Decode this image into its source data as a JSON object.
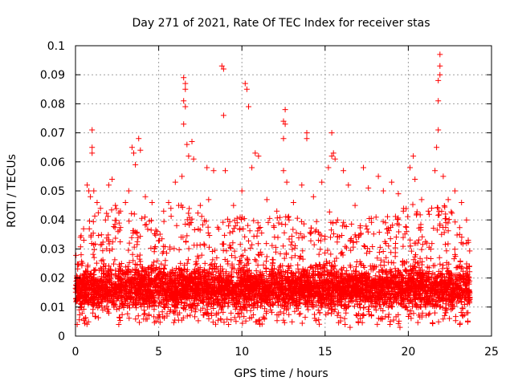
{
  "chart_data": {
    "type": "scatter",
    "title": "Day 271 of 2021, Rate Of TEC Index for receiver stas",
    "xlabel": "GPS time / hours",
    "ylabel": "ROTI / TECUs",
    "xlim": [
      0,
      25
    ],
    "ylim": [
      0,
      0.1
    ],
    "xticks": [
      0,
      5,
      10,
      15,
      20,
      25
    ],
    "xtick_labels": [
      "0",
      "5",
      "10",
      "15",
      "20",
      "25"
    ],
    "yticks": [
      0,
      0.01,
      0.02,
      0.03,
      0.04,
      0.05,
      0.06,
      0.07,
      0.08,
      0.09,
      0.1
    ],
    "ytick_labels": [
      "0",
      "0.01",
      "0.02",
      "0.03",
      "0.04",
      "0.05",
      "0.06",
      "0.07",
      "0.08",
      "0.09",
      "0.1"
    ],
    "grid": true,
    "marker": "+",
    "color": "#ff0000",
    "x_range_of_data": [
      0,
      23.7
    ],
    "series": [
      {
        "name": "stas",
        "points": [
          [
            0.3,
            0.034
          ],
          [
            0.5,
            0.033
          ],
          [
            0.7,
            0.052
          ],
          [
            0.8,
            0.05
          ],
          [
            0.9,
            0.048
          ],
          [
            1.0,
            0.071
          ],
          [
            1.0,
            0.065
          ],
          [
            1.0,
            0.063
          ],
          [
            1.1,
            0.05
          ],
          [
            1.3,
            0.046
          ],
          [
            1.5,
            0.044
          ],
          [
            1.8,
            0.04
          ],
          [
            2.0,
            0.052
          ],
          [
            2.2,
            0.054
          ],
          [
            2.4,
            0.045
          ],
          [
            2.7,
            0.043
          ],
          [
            3.0,
            0.046
          ],
          [
            3.2,
            0.05
          ],
          [
            3.4,
            0.065
          ],
          [
            3.5,
            0.063
          ],
          [
            3.6,
            0.059
          ],
          [
            3.8,
            0.068
          ],
          [
            3.9,
            0.064
          ],
          [
            4.2,
            0.048
          ],
          [
            4.6,
            0.046
          ],
          [
            4.9,
            0.036
          ],
          [
            5.3,
            0.043
          ],
          [
            5.6,
            0.046
          ],
          [
            6.0,
            0.053
          ],
          [
            6.2,
            0.045
          ],
          [
            6.4,
            0.055
          ],
          [
            6.5,
            0.089
          ],
          [
            6.6,
            0.087
          ],
          [
            6.6,
            0.085
          ],
          [
            6.5,
            0.081
          ],
          [
            6.6,
            0.079
          ],
          [
            6.5,
            0.073
          ],
          [
            6.7,
            0.066
          ],
          [
            6.8,
            0.062
          ],
          [
            7.0,
            0.067
          ],
          [
            7.1,
            0.061
          ],
          [
            7.5,
            0.045
          ],
          [
            7.9,
            0.058
          ],
          [
            8.0,
            0.047
          ],
          [
            8.3,
            0.057
          ],
          [
            8.8,
            0.093
          ],
          [
            8.9,
            0.092
          ],
          [
            8.9,
            0.076
          ],
          [
            9.0,
            0.057
          ],
          [
            9.5,
            0.045
          ],
          [
            10.0,
            0.05
          ],
          [
            10.2,
            0.087
          ],
          [
            10.3,
            0.085
          ],
          [
            10.4,
            0.079
          ],
          [
            10.6,
            0.058
          ],
          [
            10.8,
            0.063
          ],
          [
            11.0,
            0.062
          ],
          [
            11.5,
            0.047
          ],
          [
            12.1,
            0.043
          ],
          [
            12.5,
            0.057
          ],
          [
            12.6,
            0.078
          ],
          [
            12.5,
            0.074
          ],
          [
            12.6,
            0.073
          ],
          [
            12.5,
            0.068
          ],
          [
            12.7,
            0.053
          ],
          [
            13.1,
            0.046
          ],
          [
            13.6,
            0.052
          ],
          [
            13.9,
            0.07
          ],
          [
            13.9,
            0.068
          ],
          [
            14.3,
            0.048
          ],
          [
            14.8,
            0.053
          ],
          [
            15.2,
            0.058
          ],
          [
            15.4,
            0.07
          ],
          [
            15.5,
            0.063
          ],
          [
            15.4,
            0.062
          ],
          [
            15.6,
            0.061
          ],
          [
            16.1,
            0.057
          ],
          [
            16.4,
            0.052
          ],
          [
            16.8,
            0.045
          ],
          [
            17.3,
            0.058
          ],
          [
            17.6,
            0.051
          ],
          [
            18.2,
            0.055
          ],
          [
            18.5,
            0.05
          ],
          [
            19.0,
            0.053
          ],
          [
            19.4,
            0.049
          ],
          [
            19.7,
            0.043
          ],
          [
            20.1,
            0.058
          ],
          [
            20.3,
            0.062
          ],
          [
            20.4,
            0.054
          ],
          [
            20.8,
            0.047
          ],
          [
            21.2,
            0.043
          ],
          [
            21.6,
            0.057
          ],
          [
            21.7,
            0.065
          ],
          [
            21.8,
            0.071
          ],
          [
            21.8,
            0.081
          ],
          [
            21.8,
            0.088
          ],
          [
            21.9,
            0.09
          ],
          [
            21.9,
            0.093
          ],
          [
            21.9,
            0.097
          ],
          [
            22.1,
            0.055
          ],
          [
            22.4,
            0.047
          ],
          [
            22.8,
            0.05
          ],
          [
            23.2,
            0.046
          ],
          [
            23.5,
            0.04
          ],
          [
            23.6,
            0.033
          ],
          [
            0.1,
            0.004
          ],
          [
            2.6,
            0.004
          ],
          [
            9.2,
            0.004
          ],
          [
            16.2,
            0.004
          ],
          [
            16.5,
            0.003
          ],
          [
            18.9,
            0.004
          ],
          [
            19.5,
            0.003
          ],
          [
            23.1,
            0.004
          ]
        ],
        "dense_band": {
          "description": "dense cloud of points from x=0 to x=23.7 with most values between 0.006 and 0.025",
          "x_range": [
            0,
            23.7
          ],
          "core_range": [
            0.006,
            0.025
          ],
          "upper_envelope": [
            [
              0,
              0.03
            ],
            [
              1,
              0.038
            ],
            [
              2,
              0.04
            ],
            [
              3,
              0.04
            ],
            [
              4,
              0.038
            ],
            [
              5,
              0.035
            ],
            [
              6,
              0.042
            ],
            [
              7,
              0.04
            ],
            [
              8,
              0.036
            ],
            [
              9,
              0.036
            ],
            [
              10,
              0.038
            ],
            [
              11,
              0.035
            ],
            [
              12,
              0.038
            ],
            [
              13,
              0.038
            ],
            [
              14,
              0.036
            ],
            [
              15,
              0.04
            ],
            [
              16,
              0.036
            ],
            [
              17,
              0.034
            ],
            [
              18,
              0.038
            ],
            [
              19,
              0.04
            ],
            [
              20,
              0.042
            ],
            [
              21,
              0.04
            ],
            [
              22,
              0.042
            ],
            [
              23,
              0.038
            ],
            [
              23.7,
              0.03
            ]
          ]
        }
      }
    ]
  }
}
